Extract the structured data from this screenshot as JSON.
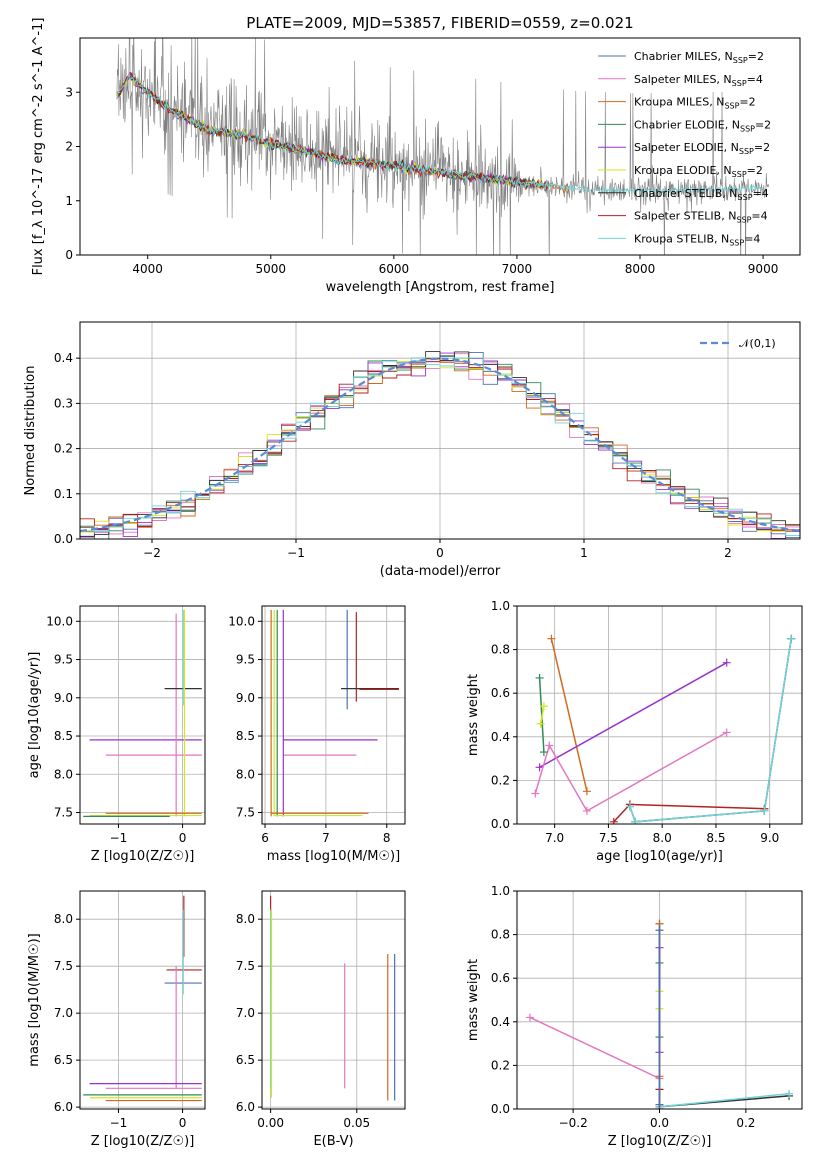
{
  "figure_title": "PLATE=2009, MJD=53857, FIBERID=0559, z=0.021",
  "colors": {
    "chabrier_miles": "#4c72b0",
    "salpeter_miles": "#e377c2",
    "kroupa_miles": "#d2691e",
    "chabrier_elodie": "#2e8b57",
    "salpeter_elodie": "#9932cc",
    "kroupa_elodie": "#d4e61c",
    "chabrier_stelib": "#333333",
    "salpeter_stelib": "#b22222",
    "kroupa_stelib": "#6fd3d8",
    "data_gray": "#808080",
    "gauss": "#5b8bd6"
  },
  "models": [
    {
      "key": "chabrier_miles",
      "imf": "Chabrier",
      "lib": "MILES",
      "nssp": "2"
    },
    {
      "key": "salpeter_miles",
      "imf": "Salpeter",
      "lib": "MILES",
      "nssp": "4"
    },
    {
      "key": "kroupa_miles",
      "imf": "Kroupa",
      "lib": "MILES",
      "nssp": "2"
    },
    {
      "key": "chabrier_elodie",
      "imf": "Chabrier",
      "lib": "ELODIE",
      "nssp": "2"
    },
    {
      "key": "salpeter_elodie",
      "imf": "Salpeter",
      "lib": "ELODIE",
      "nssp": "2"
    },
    {
      "key": "kroupa_elodie",
      "imf": "Kroupa",
      "lib": "ELODIE",
      "nssp": "2"
    },
    {
      "key": "chabrier_stelib",
      "imf": "Chabrier",
      "lib": "STELIB",
      "nssp": "4"
    },
    {
      "key": "salpeter_stelib",
      "imf": "Salpeter",
      "lib": "STELIB",
      "nssp": "4"
    },
    {
      "key": "kroupa_stelib",
      "imf": "Kroupa",
      "lib": "STELIB",
      "nssp": "4"
    }
  ],
  "chart_data": [
    {
      "id": "spectrum",
      "type": "line",
      "xlabel": "wavelength [Angstrom, rest frame]",
      "ylabel": "Flux [f_λ 10^-17 erg cm^-2 s^-1 A^-1]",
      "xlim": [
        3450,
        9300
      ],
      "ylim": [
        0,
        4
      ],
      "xticks": [
        4000,
        5000,
        6000,
        7000,
        8000,
        9000
      ],
      "yticks": [
        0,
        1,
        2,
        3
      ],
      "grid": false,
      "legend_placement": "top-right",
      "data_envelope": {
        "x": [
          3750,
          4000,
          4500,
          5000,
          5500,
          6000,
          6500,
          7000,
          7500,
          8000,
          8500,
          9000,
          9050
        ],
        "y": [
          3.1,
          2.9,
          2.35,
          2.15,
          1.85,
          1.65,
          1.5,
          1.35,
          1.22,
          1.18,
          1.2,
          1.22,
          1.25
        ]
      },
      "model_curve": {
        "x": [
          3750,
          3850,
          4000,
          4200,
          4500,
          4800,
          5000,
          5300,
          5600,
          6000,
          6300,
          6600,
          7000,
          7400
        ],
        "y": [
          2.9,
          3.3,
          3.0,
          2.65,
          2.3,
          2.2,
          2.05,
          1.9,
          1.75,
          1.65,
          1.55,
          1.45,
          1.35,
          1.25
        ]
      }
    },
    {
      "id": "residual_histogram",
      "type": "line",
      "xlabel": "(data-model)/error",
      "ylabel": "Normed distribution",
      "xlim": [
        -2.5,
        2.5
      ],
      "ylim": [
        0,
        0.48
      ],
      "xticks": [
        -2,
        -1,
        0,
        1,
        2
      ],
      "yticks": [
        0.0,
        0.1,
        0.2,
        0.3,
        0.4
      ],
      "grid": true,
      "legend_placement": "top-right",
      "legend": "𝒩(0,1)",
      "bin_width": 0.1
    },
    {
      "id": "age_vs_Z",
      "type": "scatter",
      "xlabel": "Z [log10(Z/Z☉)]",
      "ylabel": "age  [log10(age/yr)]",
      "xlim": [
        -1.6,
        0.35
      ],
      "ylim": [
        7.35,
        10.2
      ],
      "xticks": [
        -1,
        0
      ],
      "yticks": [
        7.5,
        8.0,
        8.5,
        9.0,
        9.5,
        10.0
      ],
      "grid": true,
      "segments": [
        {
          "model": "salpeter_elodie",
          "orient": "h",
          "y": 8.45,
          "x0": -1.45,
          "x1": 0.3
        },
        {
          "model": "salpeter_miles",
          "orient": "h",
          "y": 8.25,
          "x0": -1.2,
          "x1": 0.3
        },
        {
          "model": "salpeter_miles",
          "orient": "v",
          "x": -0.1,
          "y0": 7.45,
          "y1": 10.1
        },
        {
          "model": "chabrier_stelib",
          "orient": "h",
          "y": 9.12,
          "x0": -0.28,
          "x1": 0.3
        },
        {
          "model": "kroupa_stelib",
          "orient": "v",
          "x": 0.01,
          "y0": 8.9,
          "y1": 10.15
        },
        {
          "model": "kroupa_elodie",
          "orient": "v",
          "x": 0.03,
          "y0": 7.45,
          "y1": 10.15
        },
        {
          "model": "kroupa_elodie",
          "orient": "h",
          "y": 7.46,
          "x0": -1.45,
          "x1": 0.3
        },
        {
          "model": "kroupa_miles",
          "orient": "h",
          "y": 7.49,
          "x0": -1.2,
          "x1": 0.3
        },
        {
          "model": "chabrier_elodie",
          "orient": "h",
          "y": 7.45,
          "x0": -1.55,
          "x1": -0.2
        }
      ]
    },
    {
      "id": "age_vs_mass",
      "type": "scatter",
      "xlabel": "mass [log10(M/M☉)]",
      "ylabel": "",
      "xlim": [
        5.95,
        8.3
      ],
      "ylim": [
        7.35,
        10.2
      ],
      "xticks": [
        6,
        7,
        8
      ],
      "yticks": [
        7.5,
        8.0,
        8.5,
        9.0,
        9.5,
        10.0
      ],
      "grid": true,
      "segments": [
        {
          "model": "chabrier_miles",
          "orient": "v",
          "x": 7.35,
          "y0": 8.85,
          "y1": 10.15
        },
        {
          "model": "salpeter_stelib",
          "orient": "v",
          "x": 7.5,
          "y0": 8.95,
          "y1": 10.12
        },
        {
          "model": "chabrier_stelib",
          "orient": "h",
          "y": 9.12,
          "x0": 7.25,
          "x1": 8.2
        },
        {
          "model": "salpeter_stelib",
          "orient": "h",
          "y": 9.11,
          "x0": 7.55,
          "x1": 8.2
        },
        {
          "model": "salpeter_elodie",
          "orient": "h",
          "y": 8.45,
          "x0": 6.3,
          "x1": 7.85
        },
        {
          "model": "salpeter_miles",
          "orient": "h",
          "y": 8.25,
          "x0": 6.3,
          "x1": 7.5
        },
        {
          "model": "salpeter_elodie",
          "orient": "v",
          "x": 6.3,
          "y0": 7.45,
          "y1": 10.15
        },
        {
          "model": "kroupa_miles",
          "orient": "v",
          "x": 6.1,
          "y0": 7.45,
          "y1": 10.15
        },
        {
          "model": "kroupa_elodie",
          "orient": "v",
          "x": 6.15,
          "y0": 7.45,
          "y1": 10.15
        },
        {
          "model": "chabrier_elodie",
          "orient": "v",
          "x": 6.2,
          "y0": 7.45,
          "y1": 10.15
        },
        {
          "model": "kroupa_miles",
          "orient": "h",
          "y": 7.49,
          "x0": 6.1,
          "x1": 7.7
        },
        {
          "model": "kroupa_elodie",
          "orient": "h",
          "y": 7.46,
          "x0": 6.15,
          "x1": 7.6
        }
      ]
    },
    {
      "id": "mass_weight_vs_age",
      "type": "line",
      "xlabel": "age  [log10(age/yr)]",
      "ylabel": "mass weight",
      "xlim": [
        6.65,
        9.3
      ],
      "ylim": [
        0,
        1.0
      ],
      "xticks": [
        7.0,
        7.5,
        8.0,
        8.5,
        9.0
      ],
      "yticks": [
        0.0,
        0.2,
        0.4,
        0.6,
        0.8,
        1.0
      ],
      "grid": true,
      "series": [
        {
          "model": "kroupa_miles",
          "x": [
            6.97,
            7.3
          ],
          "y": [
            0.85,
            0.15
          ]
        },
        {
          "model": "salpeter_elodie",
          "x": [
            6.86,
            8.6
          ],
          "y": [
            0.26,
            0.74
          ]
        },
        {
          "model": "salpeter_miles",
          "x": [
            6.82,
            6.95,
            7.3,
            8.6
          ],
          "y": [
            0.14,
            0.36,
            0.06,
            0.42
          ]
        },
        {
          "model": "chabrier_elodie",
          "x": [
            6.86,
            6.9
          ],
          "y": [
            0.67,
            0.33
          ]
        },
        {
          "model": "kroupa_elodie",
          "x": [
            6.87,
            6.9
          ],
          "y": [
            0.46,
            0.54
          ]
        },
        {
          "model": "salpeter_stelib",
          "x": [
            7.55,
            7.7,
            8.95
          ],
          "y": [
            0.01,
            0.09,
            0.07
          ]
        },
        {
          "model": "chabrier_stelib",
          "x": [
            7.7,
            7.75,
            8.95,
            9.2
          ],
          "y": [
            0.08,
            0.01,
            0.06,
            0.85
          ]
        },
        {
          "model": "kroupa_stelib",
          "x": [
            7.7,
            7.75,
            8.95,
            9.2
          ],
          "y": [
            0.08,
            0.01,
            0.06,
            0.85
          ]
        }
      ]
    },
    {
      "id": "mass_vs_Z",
      "type": "scatter",
      "xlabel": "Z [log10(Z/Z☉)]",
      "ylabel": "mass [log10(M/M☉)]",
      "xlim": [
        -1.6,
        0.35
      ],
      "ylim": [
        5.98,
        8.3
      ],
      "xticks": [
        -1,
        0
      ],
      "yticks": [
        6.0,
        6.5,
        7.0,
        7.5,
        8.0
      ],
      "grid": true,
      "segments": [
        {
          "model": "salpeter_stelib",
          "orient": "h",
          "y": 7.46,
          "x0": -0.25,
          "x1": 0.3
        },
        {
          "model": "chabrier_miles",
          "orient": "h",
          "y": 7.32,
          "x0": -0.28,
          "x1": 0.3
        },
        {
          "model": "salpeter_stelib",
          "orient": "v",
          "x": 0.02,
          "y0": 7.6,
          "y1": 8.25
        },
        {
          "model": "kroupa_stelib",
          "orient": "v",
          "x": 0.01,
          "y0": 7.2,
          "y1": 8.1
        },
        {
          "model": "salpeter_miles",
          "orient": "v",
          "x": -0.1,
          "y0": 6.2,
          "y1": 7.5
        },
        {
          "model": "salpeter_elodie",
          "orient": "h",
          "y": 6.25,
          "x0": -1.45,
          "x1": 0.3
        },
        {
          "model": "salpeter_miles",
          "orient": "h",
          "y": 6.2,
          "x0": -1.2,
          "x1": 0.3
        },
        {
          "model": "chabrier_elodie",
          "orient": "h",
          "y": 6.13,
          "x0": -1.55,
          "x1": 0.3
        },
        {
          "model": "kroupa_elodie",
          "orient": "h",
          "y": 6.1,
          "x0": -1.45,
          "x1": 0.3
        },
        {
          "model": "kroupa_miles",
          "orient": "h",
          "y": 6.07,
          "x0": -1.2,
          "x1": 0.3
        }
      ]
    },
    {
      "id": "mass_vs_EBV",
      "type": "scatter",
      "xlabel": "E(B-V)",
      "ylabel": "",
      "xlim": [
        -0.005,
        0.078
      ],
      "ylim": [
        5.98,
        8.3
      ],
      "xticks": [
        0.0,
        0.05
      ],
      "yticks": [
        6.0,
        6.5,
        7.0,
        7.5,
        8.0
      ],
      "grid": true,
      "segments": [
        {
          "model": "salpeter_stelib",
          "orient": "v",
          "x": 0.0,
          "y0": 7.3,
          "y1": 8.25
        },
        {
          "model": "kroupa_stelib",
          "orient": "v",
          "x": 0.0,
          "y0": 6.2,
          "y1": 8.1
        },
        {
          "model": "kroupa_elodie",
          "orient": "v",
          "x": 0.0005,
          "y0": 6.1,
          "y1": 8.1
        },
        {
          "model": "salpeter_miles",
          "orient": "v",
          "x": 0.043,
          "y0": 6.2,
          "y1": 7.53
        },
        {
          "model": "kroupa_miles",
          "orient": "v",
          "x": 0.068,
          "y0": 6.07,
          "y1": 7.63
        },
        {
          "model": "chabrier_miles",
          "orient": "v",
          "x": 0.072,
          "y0": 6.07,
          "y1": 7.63
        }
      ]
    },
    {
      "id": "mass_weight_vs_Z",
      "type": "line",
      "xlabel": "Z [log10(Z/Z☉)]",
      "ylabel": "mass weight",
      "xlim": [
        -0.33,
        0.33
      ],
      "ylim": [
        0,
        1.0
      ],
      "xticks": [
        -0.2,
        0.0,
        0.2
      ],
      "yticks": [
        0.0,
        0.2,
        0.4,
        0.6,
        0.8,
        1.0
      ],
      "grid": true,
      "series": [
        {
          "model": "salpeter_miles",
          "x": [
            -0.3,
            0.0
          ],
          "y": [
            0.42,
            0.14
          ]
        },
        {
          "model": "chabrier_stelib",
          "x": [
            0.0,
            0.0,
            0.3
          ],
          "y": [
            0.85,
            0.01,
            0.06
          ]
        },
        {
          "model": "kroupa_stelib",
          "x": [
            0.0,
            0.0,
            0.3
          ],
          "y": [
            0.85,
            0.01,
            0.07
          ]
        },
        {
          "model": "salpeter_stelib",
          "x": [
            0.0,
            0.0
          ],
          "y": [
            0.0,
            0.09
          ]
        },
        {
          "model": "kroupa_miles",
          "x": [
            0.0,
            0.0
          ],
          "y": [
            0.15,
            0.85
          ]
        },
        {
          "model": "chabrier_elodie",
          "x": [
            0.0,
            0.0
          ],
          "y": [
            0.33,
            0.67
          ]
        },
        {
          "model": "kroupa_elodie",
          "x": [
            0.0,
            0.0
          ],
          "y": [
            0.46,
            0.54
          ]
        },
        {
          "model": "salpeter_elodie",
          "x": [
            0.0,
            0.0
          ],
          "y": [
            0.26,
            0.74
          ]
        },
        {
          "model": "chabrier_miles",
          "x": [
            0.0,
            0.0
          ],
          "y": [
            0.02,
            0.82
          ]
        }
      ]
    }
  ]
}
